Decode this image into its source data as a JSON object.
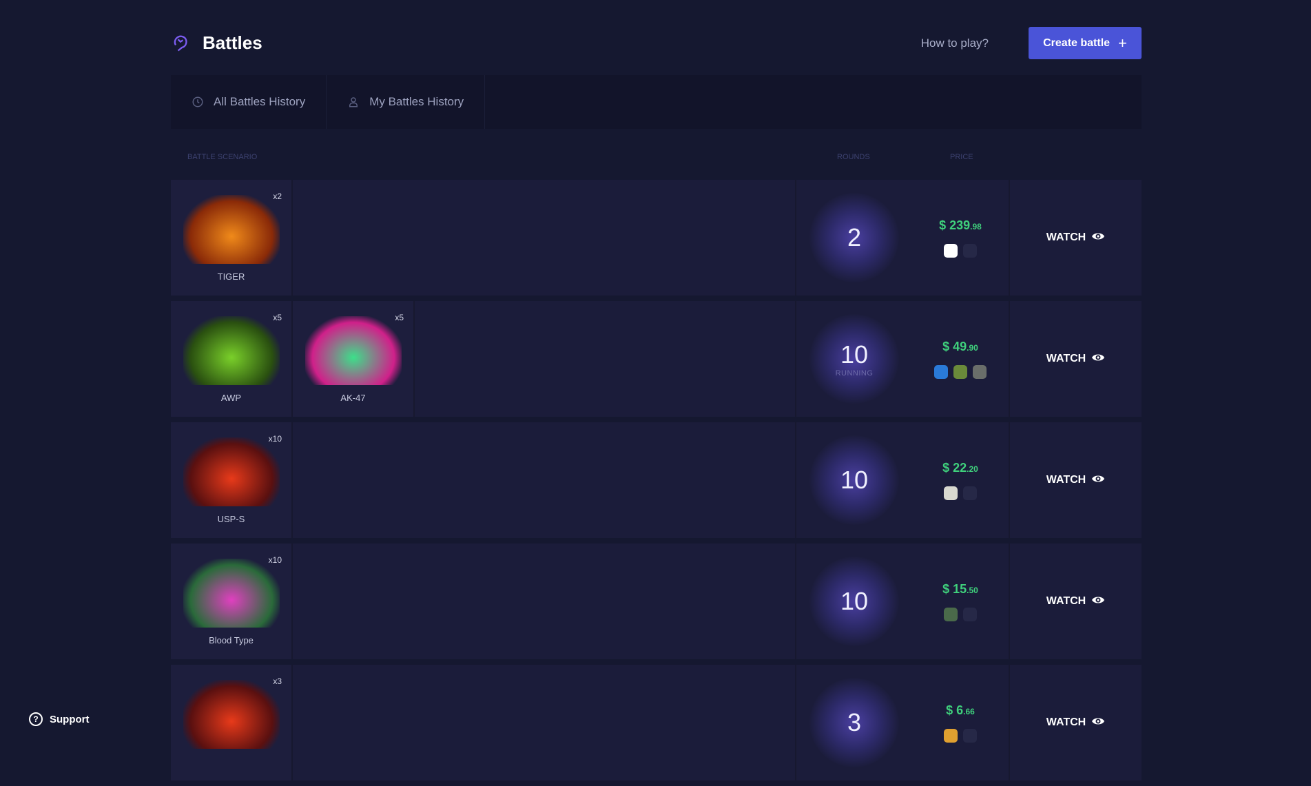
{
  "header": {
    "title": "Battles",
    "how_to_play": "How to play?",
    "create_label": "Create battle",
    "create_icon": "plus-icon",
    "accent": "#4a54d8"
  },
  "tabs": [
    {
      "label": "All Battles History",
      "icon": "history-icon"
    },
    {
      "label": "My Battles History",
      "icon": "user-icon"
    }
  ],
  "columns": {
    "scenario": "Battle Scenario",
    "rounds": "Rounds",
    "price": "Price"
  },
  "battles": [
    {
      "items": [
        {
          "name": "TIGER",
          "count": "x2",
          "colors": [
            "#f08a1a",
            "#8a2a08"
          ]
        }
      ],
      "rounds": "2",
      "status": "",
      "price": "$ 239",
      "cents": ".98",
      "avatars": [
        "#ffffff",
        "empty"
      ],
      "watch": "WATCH"
    },
    {
      "items": [
        {
          "name": "AWP",
          "count": "x5",
          "colors": [
            "#7ad02a",
            "#2a5010"
          ]
        },
        {
          "name": "AK-47",
          "count": "x5",
          "colors": [
            "#3ce08a",
            "#d0208a"
          ]
        }
      ],
      "rounds": "10",
      "status": "RUNNING",
      "price": "$ 49",
      "cents": ".90",
      "avatars": [
        "#2a7ad8",
        "#6a8a3a",
        "#6a6e6a"
      ],
      "watch": "WATCH"
    },
    {
      "items": [
        {
          "name": "USP-S",
          "count": "x10",
          "colors": [
            "#e83a1a",
            "#5a1010"
          ]
        }
      ],
      "rounds": "10",
      "status": "",
      "price": "$ 22",
      "cents": ".20",
      "avatars": [
        "#d8d8d0",
        "empty"
      ],
      "watch": "WATCH"
    },
    {
      "items": [
        {
          "name": "Blood Type",
          "count": "x10",
          "colors": [
            "#e040c0",
            "#2a6a3a"
          ]
        }
      ],
      "rounds": "10",
      "status": "",
      "price": "$ 15",
      "cents": ".50",
      "avatars": [
        "#4a6a4a",
        "empty"
      ],
      "watch": "WATCH"
    },
    {
      "items": [
        {
          "name": "",
          "count": "x3",
          "colors": [
            "#e83a1a",
            "#5a1010"
          ]
        }
      ],
      "rounds": "3",
      "status": "",
      "price": "$ 6",
      "cents": ".66",
      "avatars": [
        "#e0a030",
        "empty"
      ],
      "watch": "WATCH"
    }
  ],
  "support": "Support"
}
